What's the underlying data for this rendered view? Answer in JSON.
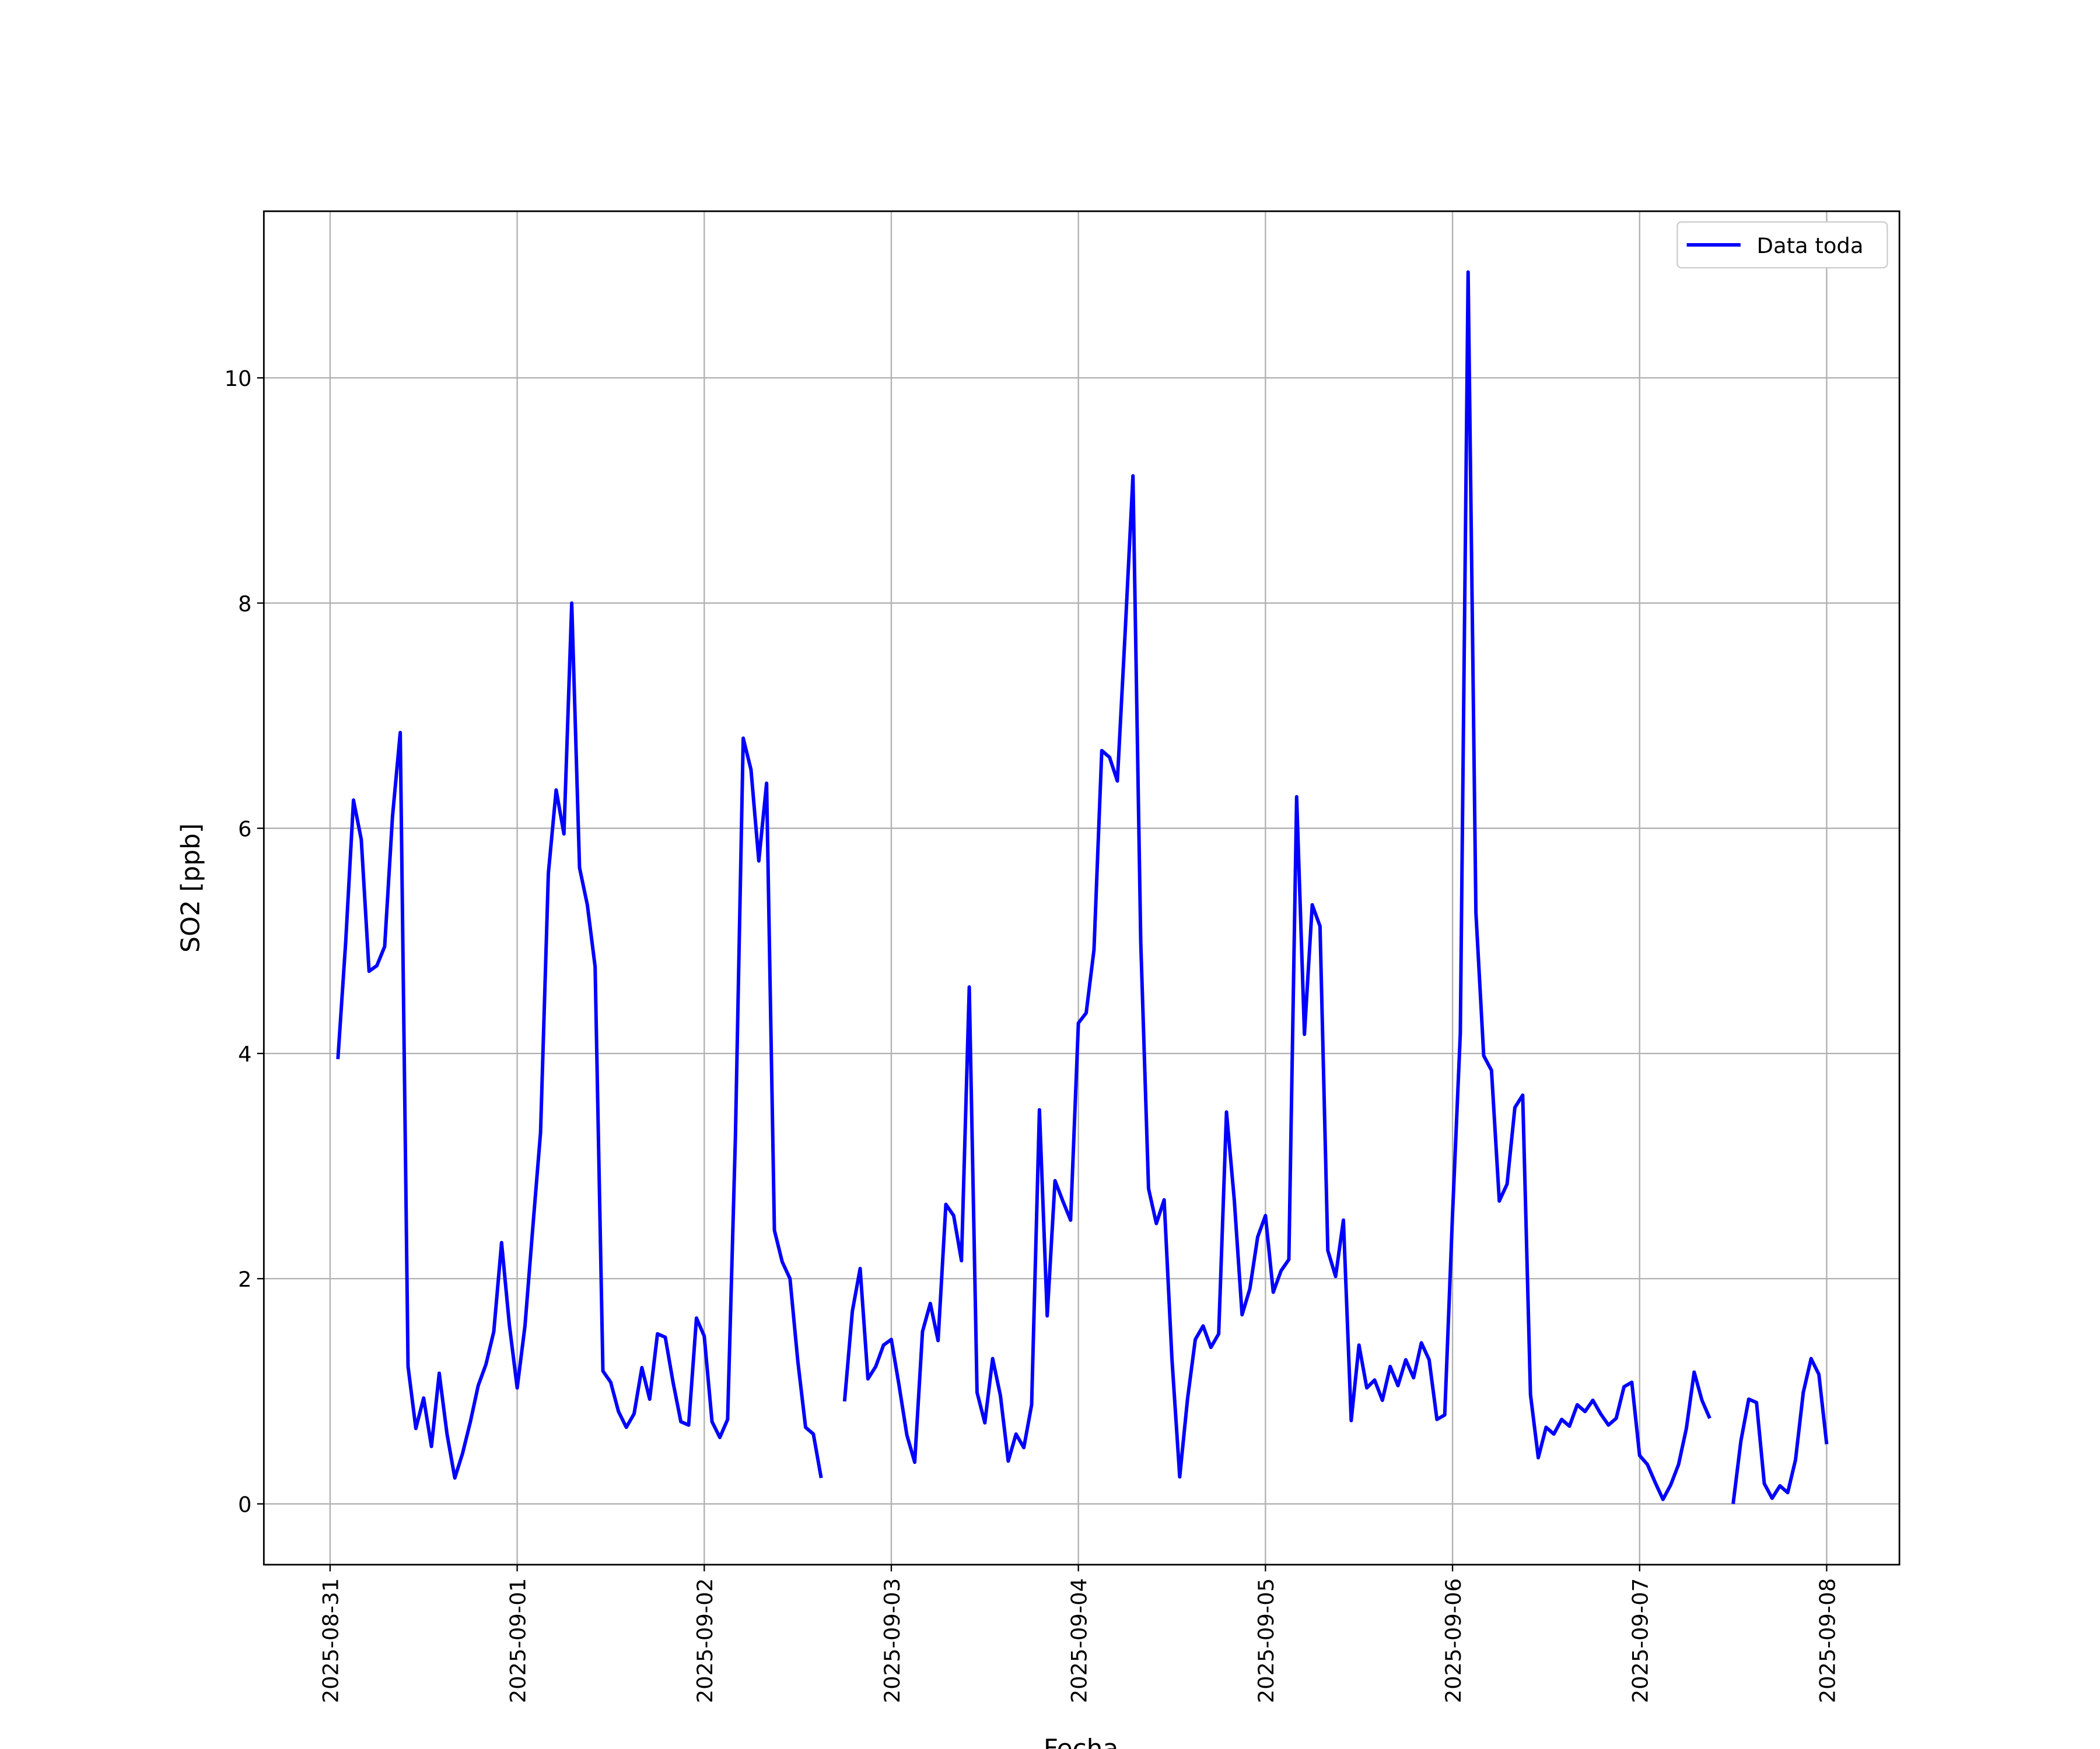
{
  "chart_data": {
    "type": "line",
    "xlabel": "Fecha",
    "ylabel": "SO2 [ppb]",
    "x": [
      "2025-08-31 01:00",
      "2025-08-31 02:00",
      "2025-08-31 03:00",
      "2025-08-31 04:00",
      "2025-08-31 05:00",
      "2025-08-31 06:00",
      "2025-08-31 07:00",
      "2025-08-31 08:00",
      "2025-08-31 09:00",
      "2025-08-31 10:00",
      "2025-08-31 11:00",
      "2025-08-31 12:00",
      "2025-08-31 13:00",
      "2025-08-31 14:00",
      "2025-08-31 15:00",
      "2025-08-31 16:00",
      "2025-08-31 17:00",
      "2025-08-31 18:00",
      "2025-08-31 19:00",
      "2025-08-31 20:00",
      "2025-08-31 21:00",
      "2025-08-31 22:00",
      "2025-08-31 23:00",
      "2025-09-01 00:00",
      "2025-09-01 01:00",
      "2025-09-01 02:00",
      "2025-09-01 03:00",
      "2025-09-01 04:00",
      "2025-09-01 05:00",
      "2025-09-01 06:00",
      "2025-09-01 07:00",
      "2025-09-01 08:00",
      "2025-09-01 09:00",
      "2025-09-01 10:00",
      "2025-09-01 11:00",
      "2025-09-01 12:00",
      "2025-09-01 13:00",
      "2025-09-01 14:00",
      "2025-09-01 15:00",
      "2025-09-01 16:00",
      "2025-09-01 17:00",
      "2025-09-01 18:00",
      "2025-09-01 19:00",
      "2025-09-01 20:00",
      "2025-09-01 21:00",
      "2025-09-01 22:00",
      "2025-09-01 23:00",
      "2025-09-02 00:00",
      "2025-09-02 01:00",
      "2025-09-02 02:00",
      "2025-09-02 03:00",
      "2025-09-02 04:00",
      "2025-09-02 05:00",
      "2025-09-02 06:00",
      "2025-09-02 07:00",
      "2025-09-02 08:00",
      "2025-09-02 09:00",
      "2025-09-02 10:00",
      "2025-09-02 11:00",
      "2025-09-02 12:00",
      "2025-09-02 13:00",
      "2025-09-02 14:00",
      "2025-09-02 15:00",
      "2025-09-02 16:00",
      "2025-09-02 17:00",
      "2025-09-02 18:00",
      "2025-09-02 19:00",
      "2025-09-02 20:00",
      "2025-09-02 21:00",
      "2025-09-02 22:00",
      "2025-09-02 23:00",
      "2025-09-03 00:00",
      "2025-09-03 01:00",
      "2025-09-03 02:00",
      "2025-09-03 03:00",
      "2025-09-03 04:00",
      "2025-09-03 05:00",
      "2025-09-03 06:00",
      "2025-09-03 07:00",
      "2025-09-03 08:00",
      "2025-09-03 09:00",
      "2025-09-03 10:00",
      "2025-09-03 11:00",
      "2025-09-03 12:00",
      "2025-09-03 13:00",
      "2025-09-03 14:00",
      "2025-09-03 15:00",
      "2025-09-03 16:00",
      "2025-09-03 17:00",
      "2025-09-03 18:00",
      "2025-09-03 19:00",
      "2025-09-03 20:00",
      "2025-09-03 21:00",
      "2025-09-03 22:00",
      "2025-09-03 23:00",
      "2025-09-04 00:00",
      "2025-09-04 01:00",
      "2025-09-04 02:00",
      "2025-09-04 03:00",
      "2025-09-04 04:00",
      "2025-09-04 05:00",
      "2025-09-04 06:00",
      "2025-09-04 07:00",
      "2025-09-04 08:00",
      "2025-09-04 09:00",
      "2025-09-04 10:00",
      "2025-09-04 11:00",
      "2025-09-04 12:00",
      "2025-09-04 13:00",
      "2025-09-04 14:00",
      "2025-09-04 15:00",
      "2025-09-04 16:00",
      "2025-09-04 17:00",
      "2025-09-04 18:00",
      "2025-09-04 19:00",
      "2025-09-04 20:00",
      "2025-09-04 21:00",
      "2025-09-04 22:00",
      "2025-09-04 23:00",
      "2025-09-05 00:00",
      "2025-09-05 01:00",
      "2025-09-05 02:00",
      "2025-09-05 03:00",
      "2025-09-05 04:00",
      "2025-09-05 05:00",
      "2025-09-05 06:00",
      "2025-09-05 07:00",
      "2025-09-05 08:00",
      "2025-09-05 09:00",
      "2025-09-05 10:00",
      "2025-09-05 11:00",
      "2025-09-05 12:00",
      "2025-09-05 13:00",
      "2025-09-05 14:00",
      "2025-09-05 15:00",
      "2025-09-05 16:00",
      "2025-09-05 17:00",
      "2025-09-05 18:00",
      "2025-09-05 19:00",
      "2025-09-05 20:00",
      "2025-09-05 21:00",
      "2025-09-05 22:00",
      "2025-09-05 23:00",
      "2025-09-06 00:00",
      "2025-09-06 01:00",
      "2025-09-06 02:00",
      "2025-09-06 03:00",
      "2025-09-06 04:00",
      "2025-09-06 05:00",
      "2025-09-06 06:00",
      "2025-09-06 07:00",
      "2025-09-06 08:00",
      "2025-09-06 09:00",
      "2025-09-06 10:00",
      "2025-09-06 11:00",
      "2025-09-06 12:00",
      "2025-09-06 13:00",
      "2025-09-06 14:00",
      "2025-09-06 15:00",
      "2025-09-06 16:00",
      "2025-09-06 17:00",
      "2025-09-06 18:00",
      "2025-09-06 19:00",
      "2025-09-06 20:00",
      "2025-09-06 21:00",
      "2025-09-06 22:00",
      "2025-09-06 23:00",
      "2025-09-07 00:00",
      "2025-09-07 01:00",
      "2025-09-07 02:00",
      "2025-09-07 03:00",
      "2025-09-07 04:00",
      "2025-09-07 05:00",
      "2025-09-07 06:00",
      "2025-09-07 07:00",
      "2025-09-07 08:00",
      "2025-09-07 09:00",
      "2025-09-07 10:00",
      "2025-09-07 11:00",
      "2025-09-07 12:00",
      "2025-09-07 13:00",
      "2025-09-07 14:00",
      "2025-09-07 15:00",
      "2025-09-07 16:00",
      "2025-09-07 17:00",
      "2025-09-07 18:00",
      "2025-09-07 19:00",
      "2025-09-07 20:00",
      "2025-09-07 21:00",
      "2025-09-07 22:00",
      "2025-09-07 23:00",
      "2025-09-08 00:00"
    ],
    "series": [
      {
        "name": "Data toda",
        "color": "#0000ff",
        "values": [
          3.95,
          4.99,
          6.25,
          5.9,
          4.73,
          4.78,
          4.95,
          6.1,
          6.85,
          1.22,
          0.67,
          0.94,
          0.51,
          1.16,
          0.62,
          0.23,
          0.45,
          0.73,
          1.05,
          1.24,
          1.53,
          2.32,
          1.59,
          1.03,
          1.58,
          2.45,
          3.3,
          5.6,
          6.34,
          5.95,
          8.0,
          5.65,
          5.32,
          4.77,
          1.18,
          1.08,
          0.82,
          0.68,
          0.8,
          1.21,
          0.93,
          1.51,
          1.48,
          1.08,
          0.73,
          0.7,
          1.65,
          1.49,
          0.73,
          0.59,
          0.75,
          3.26,
          6.8,
          6.52,
          5.71,
          6.4,
          2.43,
          2.15,
          2.0,
          1.27,
          0.68,
          0.62,
          0.23,
          null,
          null,
          0.91,
          1.71,
          2.09,
          1.11,
          1.22,
          1.41,
          1.46,
          1.05,
          0.61,
          0.37,
          1.53,
          1.78,
          1.45,
          2.66,
          2.56,
          2.16,
          4.59,
          0.99,
          0.72,
          1.29,
          0.96,
          0.38,
          0.62,
          0.5,
          0.88,
          3.5,
          1.67,
          2.87,
          2.69,
          2.52,
          4.27,
          4.36,
          4.92,
          6.69,
          6.63,
          6.42,
          7.74,
          9.13,
          4.99,
          2.8,
          2.49,
          2.7,
          1.29,
          0.24,
          0.93,
          1.46,
          1.58,
          1.39,
          1.51,
          3.48,
          2.7,
          1.68,
          1.91,
          2.37,
          2.56,
          1.88,
          2.07,
          2.17,
          6.28,
          4.17,
          5.32,
          5.13,
          2.25,
          2.02,
          2.52,
          0.74,
          1.41,
          1.03,
          1.1,
          0.92,
          1.22,
          1.05,
          1.28,
          1.12,
          1.43,
          1.28,
          0.75,
          0.79,
          2.57,
          4.18,
          10.94,
          5.25,
          3.98,
          3.85,
          2.69,
          2.84,
          3.52,
          3.63,
          0.97,
          0.41,
          0.68,
          0.62,
          0.75,
          0.69,
          0.88,
          0.82,
          0.92,
          0.8,
          0.7,
          0.76,
          1.04,
          1.08,
          0.43,
          0.35,
          0.19,
          0.04,
          0.17,
          0.35,
          0.67,
          1.17,
          0.92,
          0.76,
          null,
          null,
          0.0,
          0.56,
          0.93,
          0.9,
          0.18,
          0.05,
          0.16,
          0.1,
          0.39,
          0.99,
          1.29,
          1.15,
          0.53
        ]
      }
    ],
    "xlim": [
      "2025-08-30 15:30",
      "2025-09-08 09:20"
    ],
    "xticks": [
      "2025-08-31",
      "2025-09-01",
      "2025-09-02",
      "2025-09-03",
      "2025-09-04",
      "2025-09-05",
      "2025-09-06",
      "2025-09-07",
      "2025-09-08"
    ],
    "ylim": [
      -0.54,
      11.48
    ],
    "yticks": [
      0,
      2,
      4,
      6,
      8,
      10
    ],
    "grid": true,
    "legend": "upper right"
  }
}
